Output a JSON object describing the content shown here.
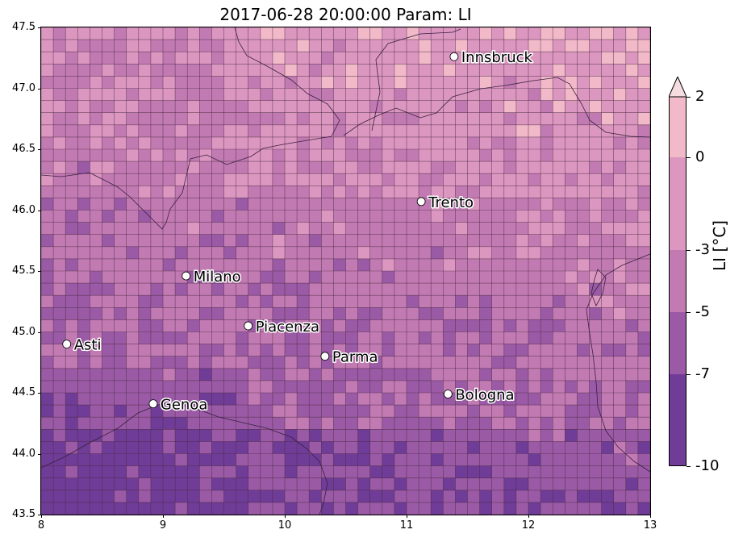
{
  "title": "2017-06-28 20:00:00 Param: LI",
  "map": {
    "lon_range": [
      8,
      13
    ],
    "lat_range": [
      43.5,
      47.5
    ],
    "x_ticks": [
      "8",
      "9",
      "10",
      "11",
      "12",
      "13"
    ],
    "y_ticks": [
      "47.5",
      "47.0",
      "46.5",
      "46.0",
      "45.5",
      "45.0",
      "44.5",
      "44.0",
      "43.5"
    ],
    "grid_cols": 50,
    "grid_rows": 40,
    "cities": [
      {
        "name": "Innsbruck",
        "lon": 11.39,
        "lat": 47.26
      },
      {
        "name": "Trento",
        "lon": 11.12,
        "lat": 46.07
      },
      {
        "name": "Milano",
        "lon": 9.19,
        "lat": 45.46
      },
      {
        "name": "Piacenza",
        "lon": 9.7,
        "lat": 45.05
      },
      {
        "name": "Asti",
        "lon": 8.21,
        "lat": 44.9
      },
      {
        "name": "Parma",
        "lon": 10.33,
        "lat": 44.8
      },
      {
        "name": "Bologna",
        "lon": 11.34,
        "lat": 44.49
      },
      {
        "name": "Genoa",
        "lon": 8.92,
        "lat": 44.41
      }
    ]
  },
  "colorbar": {
    "label": "LI  [°C]",
    "levels": [
      {
        "value": "2",
        "color": "#f5c8cf"
      },
      {
        "value": "0",
        "color": "#e5a3c0"
      },
      {
        "value": "-3",
        "color": "#cd82b5"
      },
      {
        "value": "-5",
        "color": "#a965ab"
      },
      {
        "value": "-7",
        "color": "#84489e"
      },
      {
        "value": "-10",
        "color": "#5a3290"
      }
    ],
    "extend": "max"
  },
  "colors": {
    "band_gt0": "#f2b9c9",
    "band_0_-3": "#dc97c0",
    "band_-3_-5": "#c27ab3",
    "band_-5_-7": "#9a5aa5",
    "band_-7_-10": "#6f3c97",
    "gridline": "#4a2a40",
    "coast": "#3a2040"
  }
}
